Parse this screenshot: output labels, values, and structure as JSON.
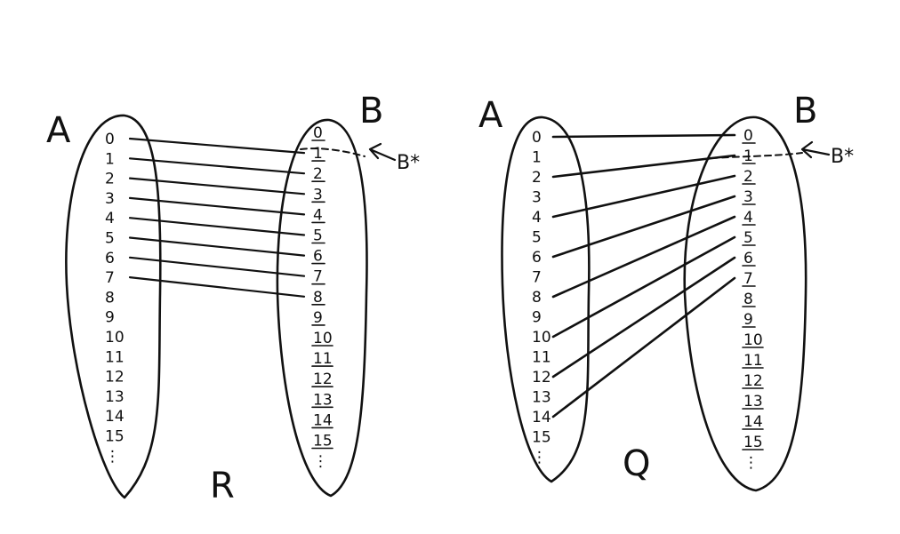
{
  "diagrams": [
    {
      "id": "R",
      "label": "R",
      "set_a_label": "A",
      "set_b_label": "B",
      "star_label": "B*",
      "a_elements": [
        "0",
        "1",
        "2",
        "3",
        "4",
        "5",
        "6",
        "7",
        "8",
        "9",
        "10",
        "11",
        "12",
        "13",
        "14",
        "15",
        "⋮"
      ],
      "b_elements": [
        "0",
        "1",
        "2",
        "3",
        "4",
        "5",
        "6",
        "7",
        "8",
        "9",
        "10",
        "11",
        "12",
        "13",
        "14",
        "15",
        "⋮"
      ],
      "mappings": [
        [
          0,
          1
        ],
        [
          1,
          2
        ],
        [
          2,
          3
        ],
        [
          3,
          4
        ],
        [
          4,
          5
        ],
        [
          5,
          6
        ],
        [
          6,
          7
        ],
        [
          7,
          8
        ]
      ]
    },
    {
      "id": "Q",
      "label": "Q",
      "set_a_label": "A",
      "set_b_label": "B",
      "star_label": "B*",
      "a_elements": [
        "0",
        "1",
        "2",
        "3",
        "4",
        "5",
        "6",
        "7",
        "8",
        "9",
        "10",
        "11",
        "12",
        "13",
        "14",
        "15",
        "⋮"
      ],
      "b_elements": [
        "0",
        "1",
        "2",
        "3",
        "4",
        "5",
        "6",
        "7",
        "8",
        "9",
        "10",
        "11",
        "12",
        "13",
        "14",
        "15",
        "⋮"
      ],
      "mappings": [
        [
          0,
          0
        ],
        [
          2,
          1
        ],
        [
          4,
          2
        ],
        [
          6,
          3
        ],
        [
          8,
          4
        ],
        [
          10,
          5
        ],
        [
          12,
          6
        ],
        [
          14,
          7
        ]
      ]
    }
  ]
}
